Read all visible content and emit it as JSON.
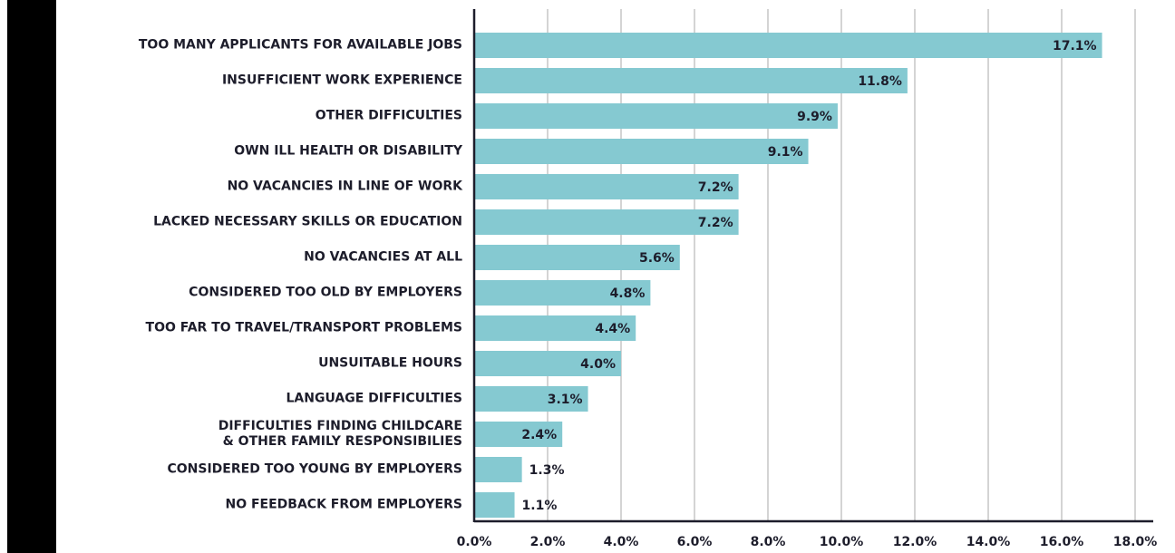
{
  "chart_data": {
    "type": "hbar",
    "categories": [
      "TOO MANY APPLICANTS FOR AVAILABLE JOBS",
      "INSUFFICIENT WORK EXPERIENCE",
      "OTHER DIFFICULTIES",
      "OWN ILL HEALTH OR DISABILITY",
      "NO VACANCIES IN LINE OF WORK",
      "LACKED NECESSARY SKILLS OR EDUCATION",
      "NO VACANCIES AT ALL",
      "CONSIDERED TOO OLD BY EMPLOYERS",
      "TOO FAR TO TRAVEL/TRANSPORT PROBLEMS",
      "UNSUITABLE HOURS",
      "LANGUAGE DIFFICULTIES",
      "DIFFICULTIES FINDING CHILDCARE\n& OTHER FAMILY RESPONSIBILIES",
      "CONSIDERED TOO YOUNG BY EMPLOYERS",
      "NO FEEDBACK FROM EMPLOYERS"
    ],
    "values": [
      17.1,
      11.8,
      9.9,
      9.1,
      7.2,
      7.2,
      5.6,
      4.8,
      4.4,
      4.0,
      3.1,
      2.4,
      1.3,
      1.1
    ],
    "value_labels": [
      "17.1%",
      "11.8%",
      "9.9%",
      "9.1%",
      "7.2%",
      "7.2%",
      "5.6%",
      "4.8%",
      "4.4%",
      "4.0%",
      "3.1%",
      "2.4%",
      "1.3%",
      "1.1%"
    ],
    "color": "#85c9d1",
    "xlim": [
      0,
      18
    ],
    "xticks": [
      {
        "value": 0,
        "label": "0.0%"
      },
      {
        "value": 2,
        "label": "2.0%"
      },
      {
        "value": 4,
        "label": "4.0%"
      },
      {
        "value": 6,
        "label": "6.0%"
      },
      {
        "value": 8,
        "label": "8.0%"
      },
      {
        "value": 10,
        "label": "10.0%"
      },
      {
        "value": 12,
        "label": "12.0%"
      },
      {
        "value": 14,
        "label": "14.0%"
      },
      {
        "value": 16,
        "label": "16.0%"
      },
      {
        "value": 18,
        "label": "18.0%"
      }
    ],
    "grid": true
  }
}
